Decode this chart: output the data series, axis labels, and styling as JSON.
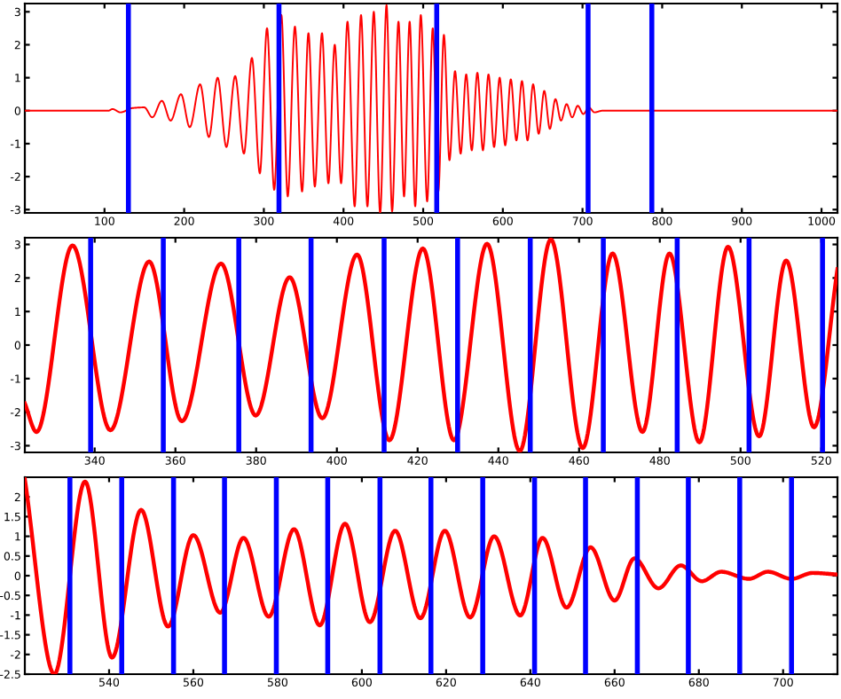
{
  "chart_data": [
    {
      "type": "line",
      "x": [
        0,
        105,
        110,
        120,
        135,
        150,
        160,
        172,
        183,
        196,
        207,
        220,
        231,
        242,
        253,
        264,
        275,
        285,
        295,
        304,
        313,
        322,
        330,
        339,
        348,
        356,
        364,
        373,
        381,
        389,
        397,
        405,
        414,
        422,
        430,
        438,
        446,
        454,
        461,
        469,
        476,
        483,
        490,
        497,
        505,
        512,
        519,
        526,
        533,
        540,
        547,
        554,
        561,
        568,
        575,
        582,
        589,
        596,
        603,
        610,
        617,
        624,
        631,
        638,
        645,
        652,
        659,
        666,
        673,
        680,
        687,
        694,
        701,
        708,
        715,
        725,
        1020
      ],
      "series": [
        {
          "color": "#ff0000",
          "values": [
            0,
            0,
            0.05,
            -0.05,
            0.08,
            0.1,
            -0.2,
            0.3,
            -0.3,
            0.5,
            -0.5,
            0.8,
            -0.8,
            1.0,
            -1.1,
            1.05,
            -1.3,
            1.6,
            -1.9,
            2.5,
            -2.4,
            2.9,
            -2.6,
            2.55,
            -2.45,
            2.35,
            -2.3,
            2.35,
            -2.2,
            2.0,
            -2.2,
            2.7,
            -2.9,
            2.9,
            -2.9,
            3.0,
            -3.1,
            3.2,
            -3.05,
            2.7,
            -2.6,
            2.7,
            -2.9,
            2.9,
            -2.75,
            2.5,
            -2.45,
            2.3,
            -1.5,
            1.2,
            -1.3,
            1.1,
            -1.2,
            1.15,
            -1.2,
            1.1,
            -1.1,
            1.0,
            -1.05,
            0.95,
            -0.9,
            0.9,
            -0.9,
            0.8,
            -0.7,
            0.6,
            -0.55,
            0.35,
            -0.3,
            0.2,
            -0.2,
            0.15,
            -0.1,
            0.1,
            -0.05,
            0,
            0
          ]
        }
      ],
      "xlim": [
        0,
        1020
      ],
      "xticks": [
        100,
        200,
        300,
        400,
        500,
        600,
        700,
        800,
        900,
        1000
      ],
      "ylim": [
        -3.1,
        3.25
      ],
      "yticks": [
        -3,
        -2,
        -1,
        0,
        1,
        2,
        3
      ],
      "grid": false,
      "ref_lines": [
        {
          "axis": "x",
          "value": 130,
          "color": "#0000ff"
        },
        {
          "axis": "x",
          "value": 319,
          "color": "#0000ff"
        },
        {
          "axis": "x",
          "value": 517,
          "color": "#0000ff"
        },
        {
          "axis": "x",
          "value": 707,
          "color": "#0000ff"
        },
        {
          "axis": "x",
          "value": 787,
          "color": "#0000ff"
        }
      ]
    },
    {
      "type": "line",
      "x": [
        322.7,
        325.6,
        334.5,
        343.9,
        353.5,
        361.6,
        371.3,
        379.9,
        388.3,
        396.4,
        405,
        413,
        421.3,
        429,
        437.2,
        445.3,
        453,
        460.9,
        468.3,
        475.7,
        482.4,
        489.8,
        496.9,
        504.6,
        511.3,
        518.2,
        524
      ],
      "series": [
        {
          "color": "#ff0000",
          "values": [
            -1.74,
            -2.59,
            2.97,
            -2.54,
            2.49,
            -2.27,
            2.43,
            -2.1,
            2.02,
            -2.18,
            2.7,
            -2.84,
            2.88,
            -2.84,
            3.02,
            -3.16,
            3.15,
            -3.07,
            2.73,
            -2.59,
            2.73,
            -2.9,
            2.93,
            -2.72,
            2.52,
            -2.45,
            2.26
          ]
        }
      ],
      "xlim": [
        322.7,
        524
      ],
      "xticks": [
        340,
        360,
        380,
        400,
        420,
        440,
        460,
        480,
        500,
        520
      ],
      "ylim": [
        -3.2,
        3.2
      ],
      "yticks": [
        -3,
        -2,
        -1,
        0,
        1,
        2,
        3
      ],
      "grid": false,
      "ref_lines": [
        {
          "axis": "x",
          "value": 339,
          "color": "#0000ff"
        },
        {
          "axis": "x",
          "value": 357,
          "color": "#0000ff"
        },
        {
          "axis": "x",
          "value": 375.7,
          "color": "#0000ff"
        },
        {
          "axis": "x",
          "value": 393.6,
          "color": "#0000ff"
        },
        {
          "axis": "x",
          "value": 411.7,
          "color": "#0000ff"
        },
        {
          "axis": "x",
          "value": 429.9,
          "color": "#0000ff"
        },
        {
          "axis": "x",
          "value": 447.9,
          "color": "#0000ff"
        },
        {
          "axis": "x",
          "value": 466,
          "color": "#0000ff"
        },
        {
          "axis": "x",
          "value": 484.3,
          "color": "#0000ff"
        },
        {
          "axis": "x",
          "value": 502.1,
          "color": "#0000ff"
        },
        {
          "axis": "x",
          "value": 520.3,
          "color": "#0000ff"
        }
      ]
    },
    {
      "type": "line",
      "x": [
        520,
        527,
        534.3,
        540.7,
        547.6,
        554,
        560,
        566.4,
        571.9,
        577.9,
        583.9,
        590,
        596,
        601.9,
        607.9,
        613.9,
        619.7,
        625.7,
        631.4,
        637.6,
        642.9,
        648.6,
        654.3,
        660,
        664.7,
        670.4,
        675.7,
        680.7,
        685.3,
        691.9,
        696.4,
        702,
        707,
        712.9
      ],
      "series": [
        {
          "color": "#ff0000",
          "values": [
            2.45,
            -2.5,
            2.39,
            -2.08,
            1.67,
            -1.29,
            1.03,
            -0.94,
            0.96,
            -1.04,
            1.18,
            -1.26,
            1.32,
            -1.18,
            1.14,
            -1.08,
            1.14,
            -1.06,
            1.0,
            -1.01,
            0.96,
            -0.81,
            0.72,
            -0.63,
            0.44,
            -0.32,
            0.26,
            -0.14,
            0.1,
            -0.08,
            0.1,
            -0.08,
            0.07,
            0.03
          ]
        }
      ],
      "xlim": [
        520,
        712.9
      ],
      "xticks": [
        540,
        560,
        580,
        600,
        620,
        640,
        660,
        680,
        700
      ],
      "ylim": [
        -2.5,
        2.5
      ],
      "yticks": [
        -2.5,
        -2,
        -1.5,
        -1,
        -0.5,
        0,
        0.5,
        1,
        1.5,
        2
      ],
      "grid": false,
      "ref_lines": [
        {
          "axis": "x",
          "value": 530.7,
          "color": "#0000ff"
        },
        {
          "axis": "x",
          "value": 543,
          "color": "#0000ff"
        },
        {
          "axis": "x",
          "value": 555.3,
          "color": "#0000ff"
        },
        {
          "axis": "x",
          "value": 567.4,
          "color": "#0000ff"
        },
        {
          "axis": "x",
          "value": 579.7,
          "color": "#0000ff"
        },
        {
          "axis": "x",
          "value": 591.9,
          "color": "#0000ff"
        },
        {
          "axis": "x",
          "value": 604.3,
          "color": "#0000ff"
        },
        {
          "axis": "x",
          "value": 616.4,
          "color": "#0000ff"
        },
        {
          "axis": "x",
          "value": 628.7,
          "color": "#0000ff"
        },
        {
          "axis": "x",
          "value": 641,
          "color": "#0000ff"
        },
        {
          "axis": "x",
          "value": 653.1,
          "color": "#0000ff"
        },
        {
          "axis": "x",
          "value": 665.4,
          "color": "#0000ff"
        },
        {
          "axis": "x",
          "value": 677.5,
          "color": "#0000ff"
        },
        {
          "axis": "x",
          "value": 689.7,
          "color": "#0000ff"
        },
        {
          "axis": "x",
          "value": 702,
          "color": "#0000ff"
        }
      ]
    }
  ]
}
